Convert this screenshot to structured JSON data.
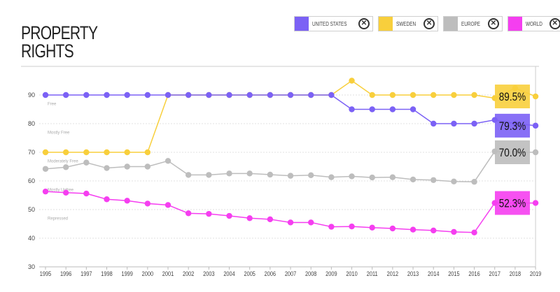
{
  "title": [
    "PROPERTY",
    "RIGHTS"
  ],
  "legend": [
    {
      "label": "UNITED STATES",
      "color": "#7b61f5",
      "icon": "close-circle-icon"
    },
    {
      "label": "SWEDEN",
      "color": "#f8cf3c",
      "icon": "close-circle-icon"
    },
    {
      "label": "EUROPE",
      "color": "#bdbdbd",
      "icon": "close-circle-icon"
    },
    {
      "label": "WORLD",
      "color": "#f53ef0",
      "icon": "close-circle-icon"
    }
  ],
  "chart_data": {
    "type": "line",
    "x": [
      1995,
      1996,
      1997,
      1998,
      1999,
      2000,
      2001,
      2002,
      2003,
      2004,
      2005,
      2006,
      2007,
      2008,
      2009,
      2010,
      2011,
      2012,
      2013,
      2014,
      2015,
      2016,
      2017,
      2018,
      2019
    ],
    "ylim": [
      30,
      100
    ],
    "yticks": [
      30,
      40,
      50,
      60,
      70,
      80,
      90
    ],
    "grid": true,
    "bands": [
      {
        "label": "Free",
        "y": 86.5
      },
      {
        "label": "Mostly Free",
        "y": 76.5
      },
      {
        "label": "Moderately Free",
        "y": 66.5
      },
      {
        "label": "Mostly Unfree",
        "y": 56.5
      },
      {
        "label": "Repressed",
        "y": 46.5
      }
    ],
    "series": [
      {
        "name": "UNITED STATES",
        "color": "#7b61f5",
        "values": [
          90,
          90,
          90,
          90,
          90,
          90,
          90,
          90,
          90,
          90,
          90,
          90,
          90,
          90,
          90,
          85,
          85,
          85,
          85,
          80,
          80,
          80,
          81.3,
          80,
          79.3
        ],
        "callout": "79.3%"
      },
      {
        "name": "SWEDEN",
        "color": "#f8cf3c",
        "values": [
          70,
          70,
          70,
          70,
          70,
          70,
          90,
          90,
          90,
          90,
          90,
          90,
          90,
          90,
          90,
          95,
          90,
          90,
          90,
          90,
          90,
          90,
          88.9,
          92.4,
          89.5
        ],
        "callout": "89.5%"
      },
      {
        "name": "EUROPE",
        "color": "#bdbdbd",
        "values": [
          64.2,
          64.8,
          66.4,
          64.5,
          65.0,
          65.0,
          67.0,
          62.1,
          62.1,
          62.6,
          62.6,
          62.2,
          61.8,
          62.0,
          61.3,
          61.6,
          61.2,
          61.3,
          60.5,
          60.3,
          59.8,
          59.7,
          70.3,
          70.0,
          70.0
        ],
        "callout": "70.0%"
      },
      {
        "name": "WORLD",
        "color": "#f53ef0",
        "values": [
          56.3,
          55.9,
          55.6,
          53.6,
          53.1,
          52.1,
          51.6,
          48.7,
          48.5,
          47.8,
          47.0,
          46.6,
          45.5,
          45.5,
          44.0,
          44.1,
          43.7,
          43.4,
          43.0,
          42.7,
          42.2,
          42.0,
          52.3,
          52.3,
          52.3
        ],
        "callout": "52.3%"
      }
    ]
  }
}
